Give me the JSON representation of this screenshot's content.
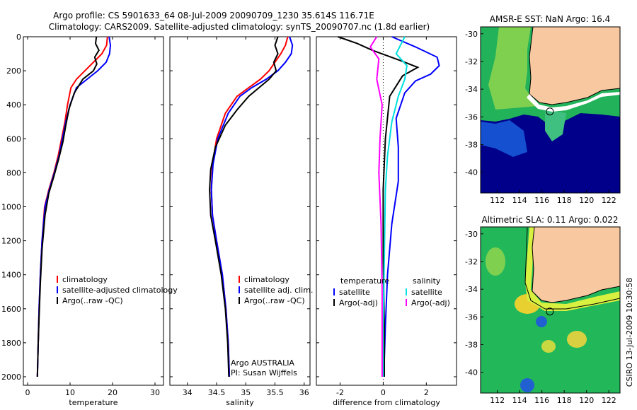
{
  "header": {
    "line1": "Argo profile: CS 5901633_64 08-Jul-2009 20090709_1230 35.614S 116.71E",
    "line2": "Climatology: CARS2009. Satellite-adjusted climatology: synTS_20090707.nc (1.8d earlier)"
  },
  "credit": "CSIRO 13-Jul-2009 10:30:58",
  "colors": {
    "climatology": "#ff0000",
    "satellite": "#0000ff",
    "argo": "#000000",
    "sal_sat": "#00e0e0",
    "sal_argo": "#ff00ff"
  },
  "chart_data": [
    {
      "type": "line",
      "id": "temperature",
      "xlabel": "temperature",
      "xlim": [
        -1,
        32
      ],
      "ylim": [
        2050,
        0
      ],
      "xticks": [
        0,
        10,
        20,
        30
      ],
      "yticks": [
        0,
        200,
        400,
        600,
        800,
        1000,
        1200,
        1400,
        1600,
        1800,
        2000
      ],
      "legend": [
        "climatology",
        "satellite-adjusted climatology",
        "Argo(..raw -QC)"
      ],
      "series": [
        {
          "name": "climatology",
          "color": "#ff0000",
          "x": [
            18.8,
            18.6,
            17.5,
            15.5,
            13.5,
            11.5,
            10.2,
            9.4,
            8.8,
            8.0,
            7.2,
            6.2,
            5.0,
            4.0,
            3.4,
            3.0,
            2.7,
            2.5,
            2.4,
            2.3
          ],
          "y": [
            0,
            50,
            100,
            150,
            200,
            250,
            300,
            400,
            500,
            600,
            700,
            800,
            900,
            1000,
            1200,
            1400,
            1600,
            1800,
            1900,
            2000
          ]
        },
        {
          "name": "satellite-adjusted climatology",
          "color": "#0000ff",
          "x": [
            19.2,
            19.5,
            19.3,
            18.5,
            16.5,
            14.0,
            11.5,
            10.0,
            9.0,
            8.2,
            7.4,
            6.3,
            5.1,
            4.1,
            3.4,
            3.0,
            2.7,
            2.5,
            2.4,
            2.3
          ],
          "y": [
            0,
            50,
            100,
            150,
            200,
            250,
            300,
            400,
            500,
            600,
            700,
            800,
            900,
            1000,
            1200,
            1400,
            1600,
            1800,
            1900,
            2000
          ]
        },
        {
          "name": "Argo(..raw -QC)",
          "color": "#000000",
          "x": [
            16.2,
            16.0,
            16.8,
            15.8,
            16.3,
            15.5,
            13.0,
            11.0,
            9.8,
            9.0,
            8.3,
            7.3,
            6.2,
            5.0,
            4.1,
            3.4,
            3.0,
            2.7,
            2.5,
            2.4,
            2.3
          ],
          "y": [
            0,
            40,
            80,
            120,
            160,
            200,
            250,
            330,
            420,
            520,
            620,
            720,
            820,
            920,
            1050,
            1250,
            1450,
            1650,
            1800,
            1900,
            2000
          ]
        }
      ]
    },
    {
      "type": "line",
      "id": "salinity",
      "xlabel": "salinity",
      "xlim": [
        33.7,
        36.1
      ],
      "ylim": [
        2050,
        0
      ],
      "xticks": [
        34,
        34.5,
        35,
        35.5,
        36
      ],
      "yticks": [
        0,
        200,
        400,
        600,
        800,
        1000,
        1200,
        1400,
        1600,
        1800,
        2000
      ],
      "legend": [
        "climatology",
        "satellite adj. clim.",
        "Argo(..raw -QC)"
      ],
      "annotation": [
        "Argo AUSTRALIA",
        "PI: Susan Wijffels"
      ],
      "series": [
        {
          "name": "climatology",
          "color": "#ff0000",
          "x": [
            35.72,
            35.68,
            35.6,
            35.5,
            35.4,
            35.25,
            35.05,
            34.85,
            34.65,
            34.5,
            34.43,
            34.41,
            34.43,
            34.5,
            34.6,
            34.66,
            34.7,
            34.71,
            34.72
          ],
          "y": [
            0,
            50,
            100,
            150,
            200,
            250,
            300,
            350,
            450,
            600,
            750,
            900,
            1050,
            1200,
            1400,
            1600,
            1800,
            1900,
            2000
          ]
        },
        {
          "name": "satellite adj. clim.",
          "color": "#0000ff",
          "x": [
            35.75,
            35.8,
            35.78,
            35.68,
            35.55,
            35.35,
            35.1,
            34.9,
            34.7,
            34.52,
            34.44,
            34.41,
            34.43,
            34.5,
            34.6,
            34.66,
            34.7,
            34.71,
            34.72
          ],
          "y": [
            0,
            50,
            100,
            150,
            200,
            250,
            300,
            350,
            450,
            600,
            750,
            900,
            1050,
            1200,
            1400,
            1600,
            1800,
            1900,
            2000
          ]
        },
        {
          "name": "Argo(..raw -QC)",
          "color": "#000000",
          "x": [
            35.55,
            35.5,
            35.55,
            35.48,
            35.52,
            35.4,
            35.05,
            34.85,
            34.65,
            34.48,
            34.4,
            34.38,
            34.4,
            34.48,
            34.58,
            34.65,
            34.69,
            34.7,
            34.71
          ],
          "y": [
            0,
            50,
            100,
            150,
            200,
            250,
            350,
            430,
            520,
            650,
            780,
            900,
            1050,
            1200,
            1400,
            1600,
            1800,
            1900,
            2000
          ]
        }
      ]
    },
    {
      "type": "line",
      "id": "difference",
      "xlabel": "difference from climatology",
      "xlim": [
        -3.1,
        3.4
      ],
      "ylim": [
        2050,
        0
      ],
      "xticks": [
        -2,
        0,
        2
      ],
      "yticks": [
        0,
        200,
        400,
        600,
        800,
        1000,
        1200,
        1400,
        1600,
        1800,
        2000
      ],
      "zero_line": true,
      "legend_left_title": "temperature",
      "legend_right_title": "salinity",
      "legend": [
        "satellite",
        "Argo(-adj)",
        "satellite",
        "Argo(-adj)"
      ],
      "series": [
        {
          "name": "satellite",
          "group": "temperature",
          "color": "#0000ff",
          "x": [
            0.4,
            1.5,
            2.5,
            2.6,
            2.2,
            1.5,
            1.0,
            0.6,
            0.7,
            0.7,
            0.4,
            0.2,
            0.1,
            0.05,
            0.05
          ],
          "y": [
            0,
            60,
            120,
            170,
            220,
            260,
            330,
            480,
            650,
            850,
            1100,
            1400,
            1700,
            1900,
            2000
          ]
        },
        {
          "name": "Argo(-adj)",
          "group": "temperature",
          "color": "#000000",
          "x": [
            -2.1,
            -1.2,
            -0.5,
            0.8,
            1.6,
            0.9,
            0.3,
            0.1,
            0.0,
            0.0,
            0.05,
            0.05
          ],
          "y": [
            0,
            40,
            80,
            140,
            180,
            230,
            350,
            600,
            900,
            1300,
            1700,
            2000
          ]
        },
        {
          "name": "satellite",
          "group": "salinity",
          "color": "#00e0e0",
          "x": [
            1.0,
            0.8,
            0.6,
            1.1,
            1.0,
            0.7,
            0.4,
            0.2,
            0.1,
            0.05,
            0.0,
            0.0
          ],
          "y": [
            0,
            50,
            100,
            170,
            250,
            350,
            500,
            700,
            900,
            1300,
            1700,
            2000
          ]
        },
        {
          "name": "Argo(-adj)",
          "group": "salinity",
          "color": "#ff00ff",
          "x": [
            -0.3,
            -0.6,
            -0.2,
            -0.3,
            -0.05,
            -0.15,
            -0.2,
            -0.1,
            -0.05,
            -0.05
          ],
          "y": [
            0,
            60,
            130,
            250,
            400,
            600,
            800,
            1100,
            1500,
            2000
          ]
        }
      ]
    },
    {
      "type": "heatmap",
      "id": "sst_map",
      "title": "AMSR-E SST: NaN Argo: 16.4",
      "xlim": [
        110.5,
        123
      ],
      "ylim": [
        -41.5,
        -29.5
      ],
      "xticks": [
        112,
        114,
        116,
        118,
        120,
        122
      ],
      "yticks": [
        -30,
        -32,
        -34,
        -36,
        -38,
        -40
      ],
      "marker": {
        "lon": 116.71,
        "lat": -35.614
      }
    },
    {
      "type": "heatmap",
      "id": "sla_map",
      "title": "Altimetric SLA: 0.11 Argo: 0.022",
      "xlim": [
        110.5,
        123
      ],
      "ylim": [
        -41.5,
        -29.5
      ],
      "xticks": [
        112,
        114,
        116,
        118,
        120,
        122
      ],
      "yticks": [
        -30,
        -32,
        -34,
        -36,
        -38,
        -40
      ],
      "marker": {
        "lon": 116.71,
        "lat": -35.614
      }
    }
  ]
}
